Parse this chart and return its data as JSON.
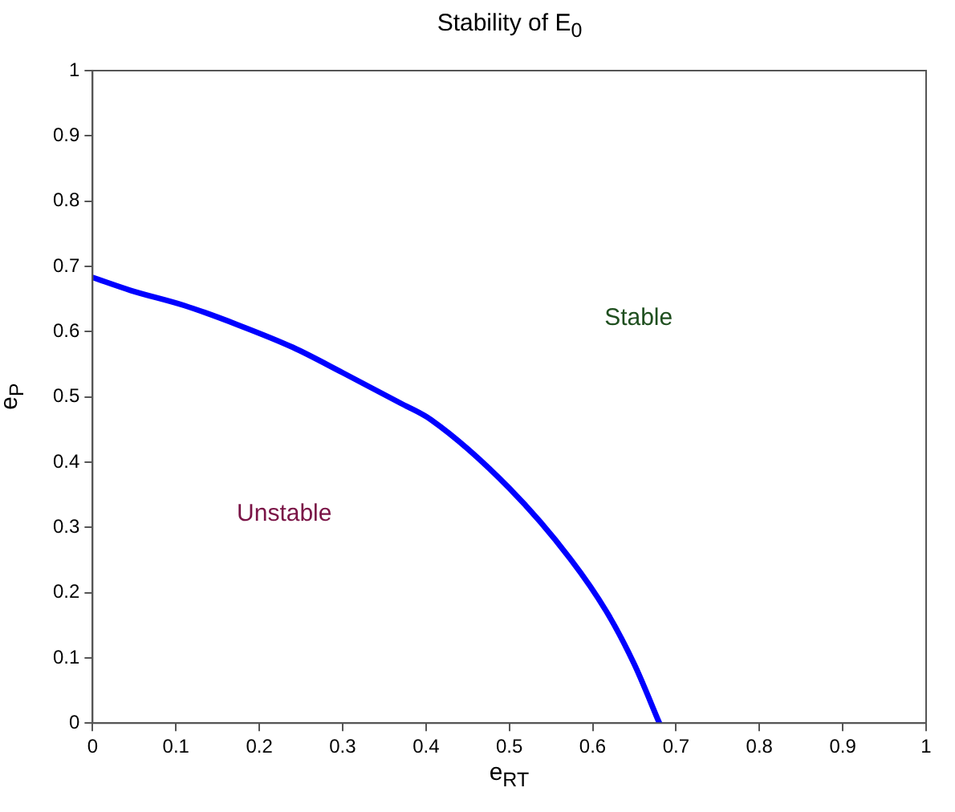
{
  "chart_data": {
    "type": "line",
    "title": "Stability of E$_{0}$",
    "xlabel": "e$_{RT}$",
    "ylabel": "e$_{P}$",
    "series": [
      {
        "color": "#0000ff",
        "x": [
          0,
          0.046,
          0.11,
          0.175,
          0.24,
          0.3,
          0.37,
          0.406,
          0.5,
          0.573,
          0.617,
          0.65,
          0.68
        ],
        "values": [
          0.683,
          0.663,
          0.64,
          0.61,
          0.576,
          0.537,
          0.49,
          0.465,
          0.36,
          0.252,
          0.17,
          0.09,
          0
        ]
      }
    ],
    "xlim": [
      0,
      1
    ],
    "ylim": [
      0,
      1
    ],
    "xticks": [
      0,
      0.1,
      0.2,
      0.3,
      0.4,
      0.5,
      0.6,
      0.7,
      0.8,
      0.9,
      1
    ],
    "yticks": [
      0,
      0.1,
      0.2,
      0.3,
      0.4,
      0.5,
      0.6,
      0.7,
      0.8,
      0.9,
      1
    ],
    "annotations": [
      "Stable",
      "Unstable"
    ],
    "grid": false,
    "legend": false,
    "marker": "none",
    "line_style": "solid"
  }
}
